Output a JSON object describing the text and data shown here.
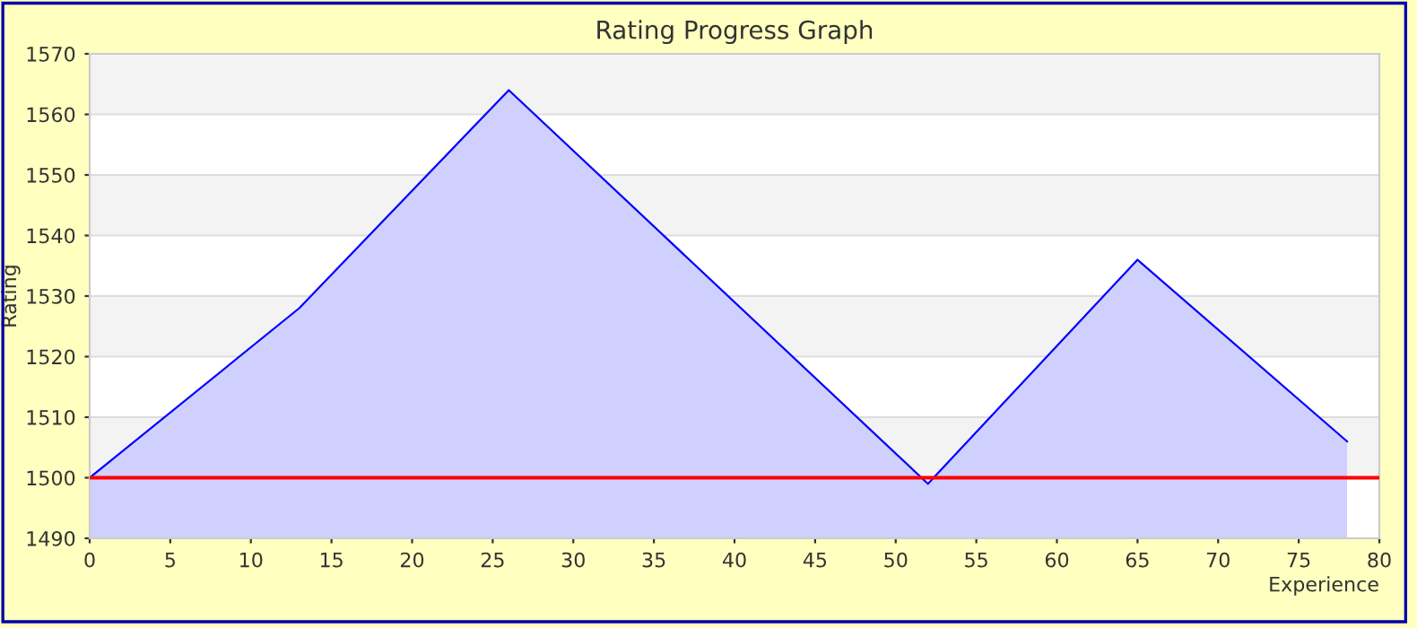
{
  "chart_data": {
    "type": "area",
    "title": "Rating Progress Graph",
    "xlabel": "Experience",
    "ylabel": "Rating",
    "x": [
      0,
      13,
      26,
      52,
      65,
      78
    ],
    "series": [
      {
        "color": "#0000ff",
        "values": [
          1500,
          1528,
          1564,
          1499,
          1536,
          1506
        ]
      }
    ],
    "xlim": [
      0,
      80
    ],
    "xticks": [
      0,
      5,
      10,
      15,
      20,
      25,
      30,
      35,
      40,
      45,
      50,
      55,
      60,
      65,
      70,
      75,
      80
    ],
    "ylim": [
      1490,
      1570
    ],
    "yticks": [
      1490,
      1500,
      1510,
      1520,
      1530,
      1540,
      1550,
      1560,
      1570
    ],
    "ref_lines": [
      {
        "axis": "y",
        "value": 1500,
        "color": "#ff0000"
      }
    ],
    "grid": "y",
    "legend": false
  }
}
